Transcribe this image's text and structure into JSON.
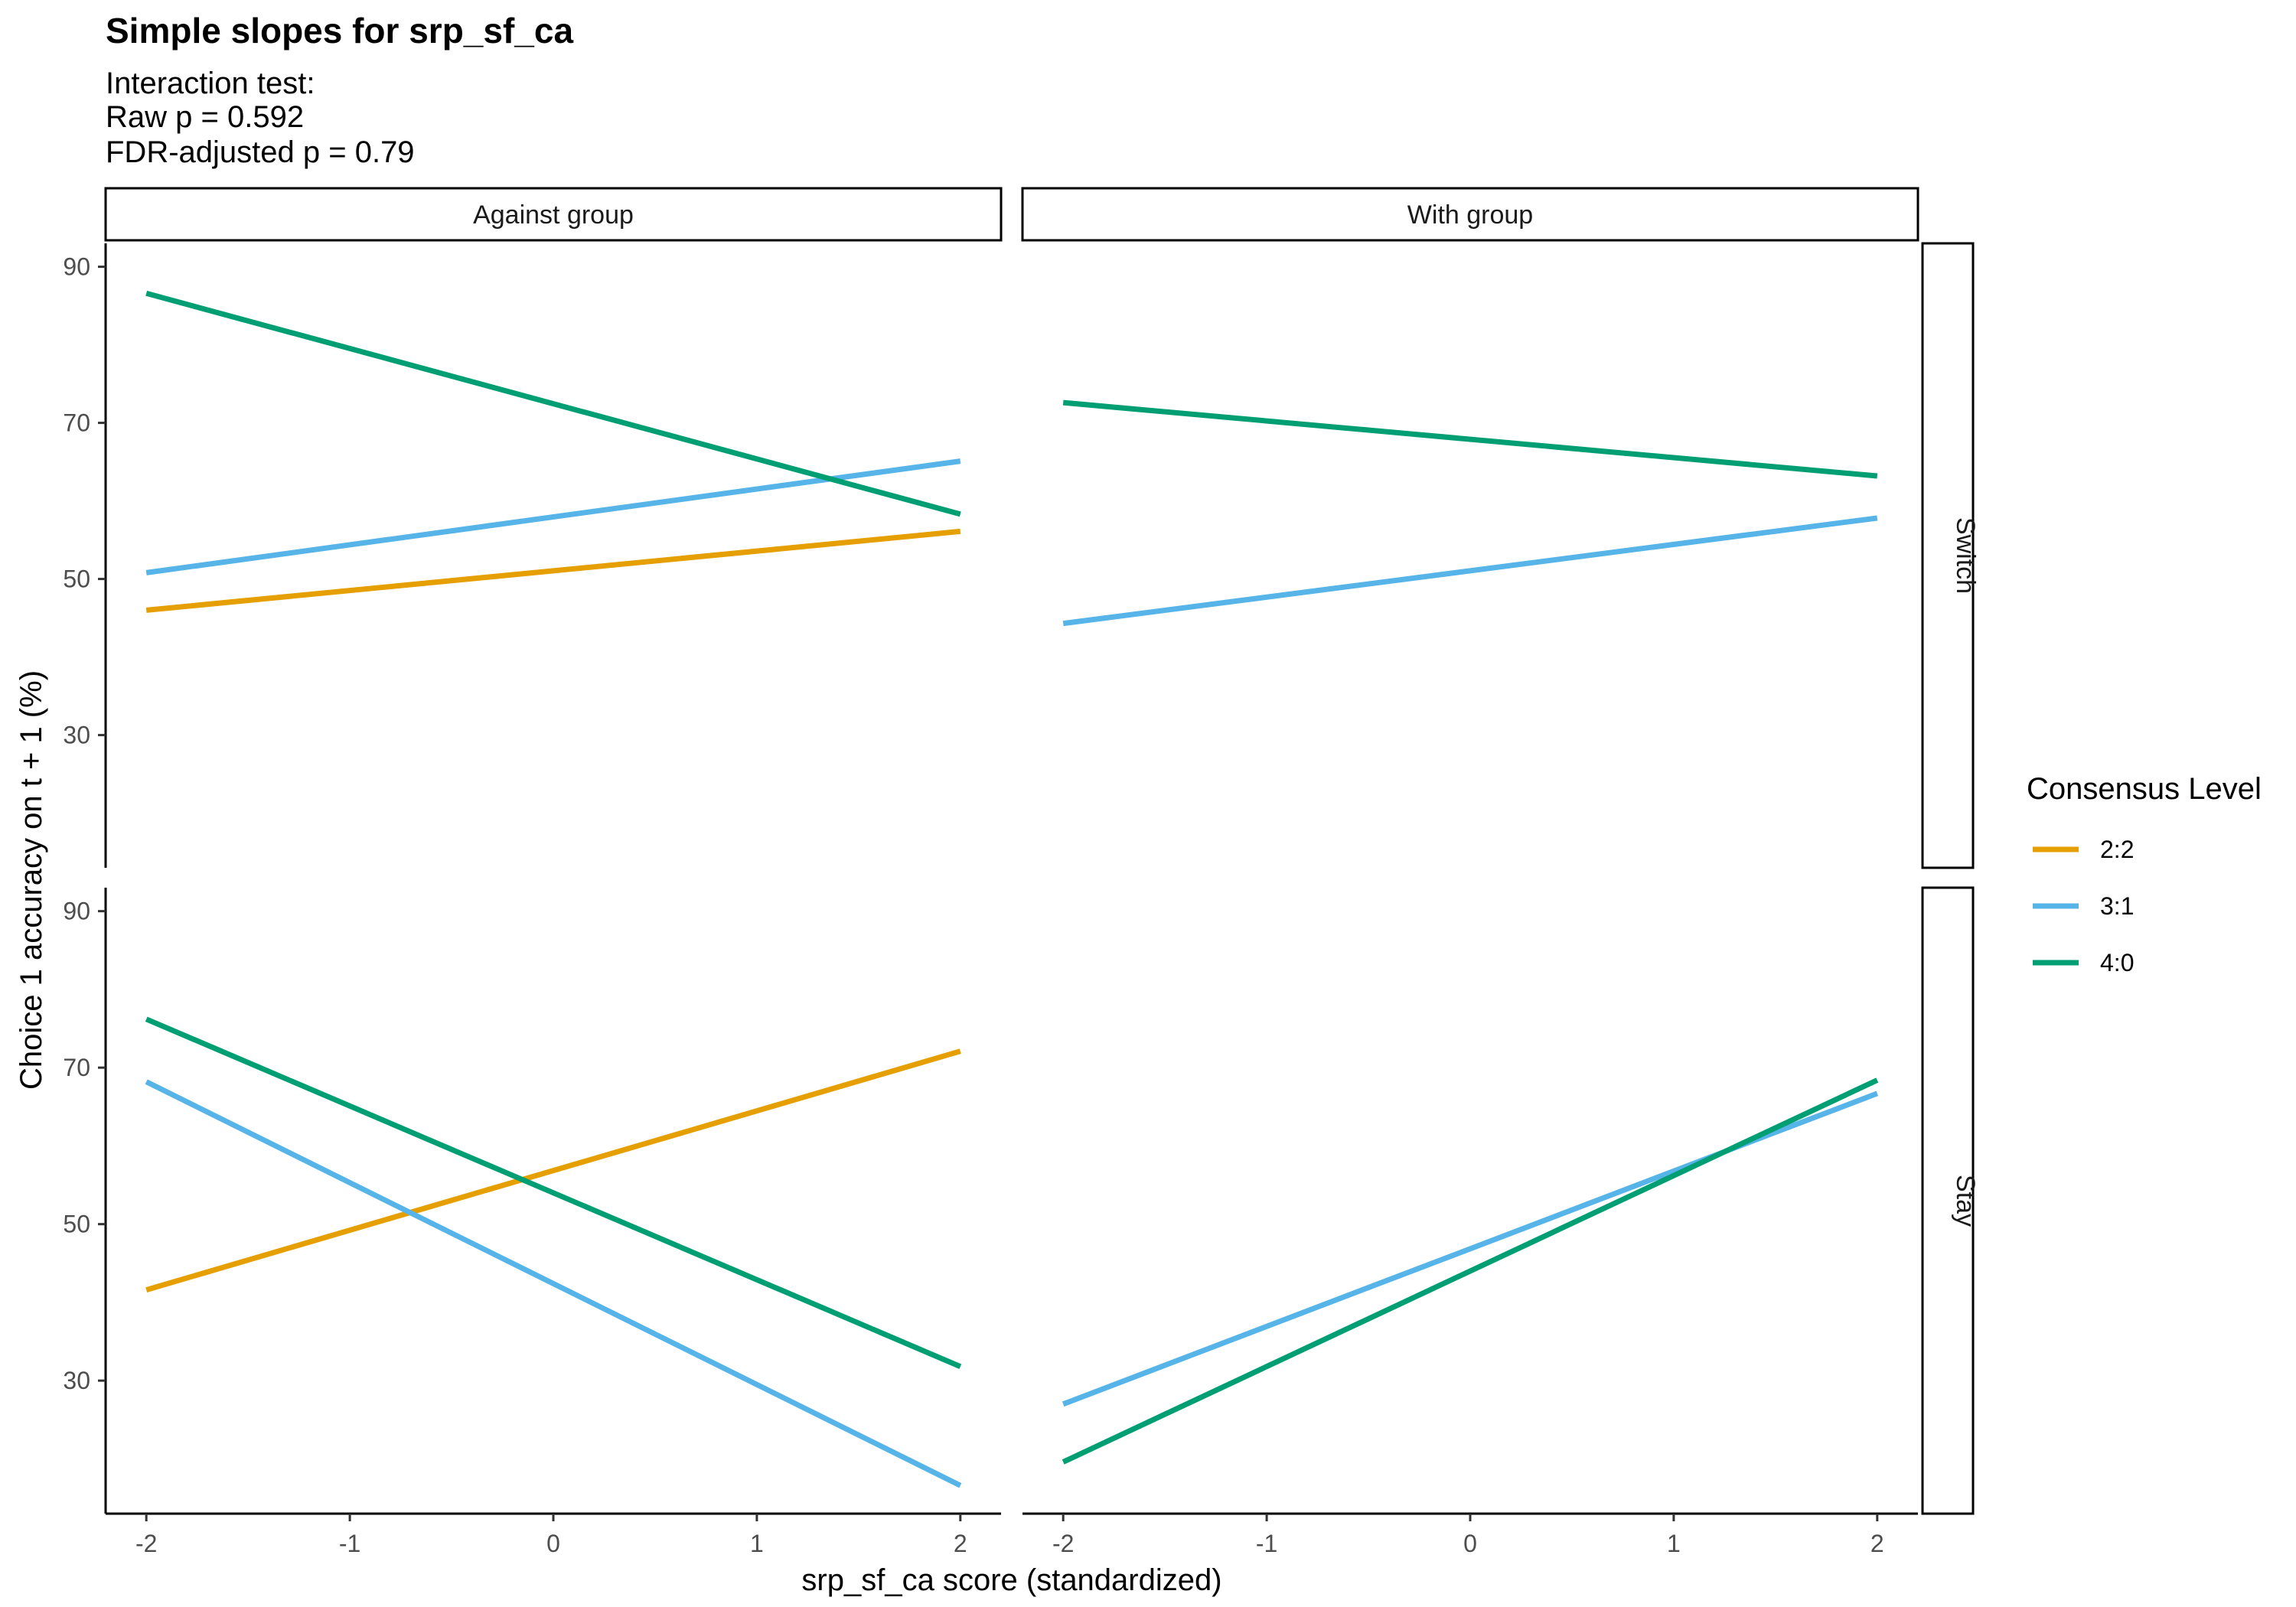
{
  "chart_data": {
    "type": "line",
    "title": "Simple slopes for srp_sf_ca",
    "subtitle_lines": [
      "Interaction test:",
      "Raw p = 0.592",
      "FDR-adjusted p = 0.79"
    ],
    "xlabel": "srp_sf_ca score (standardized)",
    "ylabel": "Choice 1 accuracy on t + 1 (%)",
    "xlim": [
      -2.2,
      2.2
    ],
    "x_ticks": [
      -2,
      -1,
      0,
      1,
      2
    ],
    "x_tick_labels": [
      "-2",
      "-1",
      "0",
      "1",
      "2"
    ],
    "ylim": [
      13,
      93
    ],
    "y_ticks": [
      30,
      50,
      70,
      90
    ],
    "y_tick_labels": [
      "30",
      "50",
      "70",
      "90"
    ],
    "grid": false,
    "facet_columns": [
      "Against group",
      "With group"
    ],
    "facet_rows": [
      "Switch",
      "Stay"
    ],
    "legend": {
      "title": "Consensus Level",
      "position": "right",
      "entries": [
        {
          "label": "2:2",
          "color": "#E69F00"
        },
        {
          "label": "3:1",
          "color": "#56B4E9"
        },
        {
          "label": "4:0",
          "color": "#009E73"
        }
      ]
    },
    "panels": [
      {
        "column": "Against group",
        "row": "Switch",
        "series": [
          {
            "name": "2:2",
            "x": [
              -2,
              2
            ],
            "y": [
              46.0,
              56.1
            ]
          },
          {
            "name": "3:1",
            "x": [
              -2,
              2
            ],
            "y": [
              50.8,
              65.1
            ]
          },
          {
            "name": "4:0",
            "x": [
              -2,
              2
            ],
            "y": [
              86.6,
              58.3
            ]
          }
        ]
      },
      {
        "column": "With group",
        "row": "Switch",
        "series": [
          {
            "name": "3:1",
            "x": [
              -2,
              2
            ],
            "y": [
              44.3,
              57.8
            ]
          },
          {
            "name": "4:0",
            "x": [
              -2,
              2
            ],
            "y": [
              72.6,
              63.2
            ]
          }
        ]
      },
      {
        "column": "Against group",
        "row": "Stay",
        "series": [
          {
            "name": "2:2",
            "x": [
              -2,
              2
            ],
            "y": [
              41.6,
              72.1
            ]
          },
          {
            "name": "3:1",
            "x": [
              -2,
              2
            ],
            "y": [
              68.2,
              16.6
            ]
          },
          {
            "name": "4:0",
            "x": [
              -2,
              2
            ],
            "y": [
              76.2,
              31.8
            ]
          }
        ]
      },
      {
        "column": "With group",
        "row": "Stay",
        "series": [
          {
            "name": "3:1",
            "x": [
              -2,
              2
            ],
            "y": [
              27.0,
              66.7
            ]
          },
          {
            "name": "4:0",
            "x": [
              -2,
              2
            ],
            "y": [
              19.6,
              68.4
            ]
          }
        ]
      }
    ]
  }
}
